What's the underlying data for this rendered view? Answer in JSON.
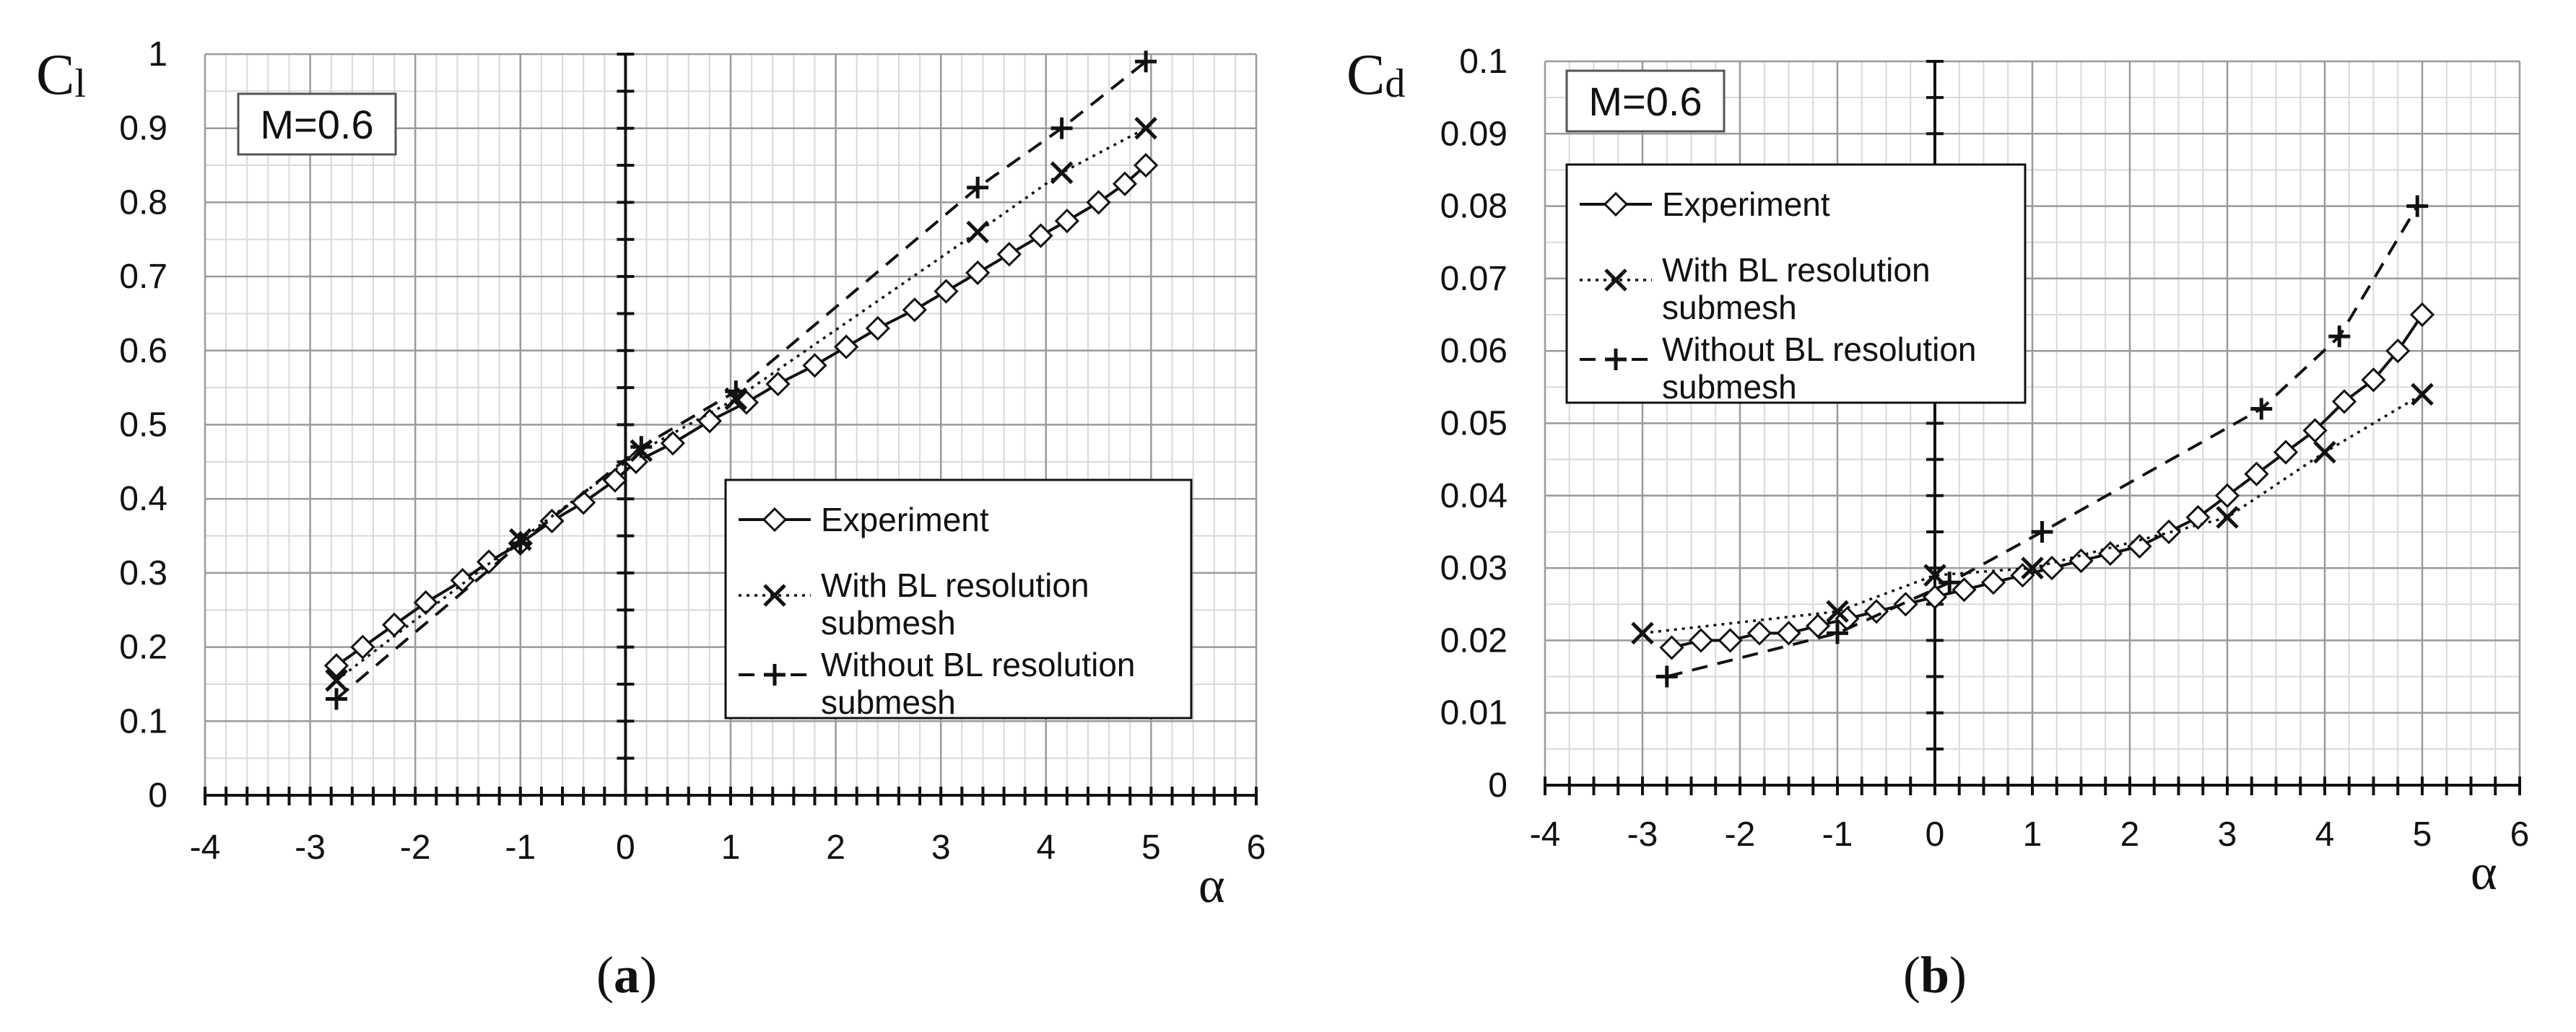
{
  "chart_data": [
    {
      "type": "line",
      "caption": "a",
      "ylabel": "C",
      "ylabel_sub": "l",
      "xlabel": "α",
      "annotation": "M=0.6",
      "xlim": [
        -4,
        6
      ],
      "ylim": [
        0,
        1
      ],
      "xticks": [
        "-4",
        "-3",
        "-2",
        "-1",
        "0",
        "1",
        "2",
        "3",
        "4",
        "5",
        "6"
      ],
      "yticks": [
        "0",
        "0.1",
        "0.2",
        "0.3",
        "0.4",
        "0.5",
        "0.6",
        "0.7",
        "0.8",
        "0.9",
        "1"
      ],
      "legend_position": "bottom-right",
      "series": [
        {
          "name": "Experiment",
          "style": "solid",
          "marker": "diamond",
          "x": [
            -2.75,
            -2.5,
            -2.2,
            -1.9,
            -1.55,
            -1.3,
            -1.0,
            -0.7,
            -0.4,
            -0.1,
            0.1,
            0.45,
            0.8,
            1.15,
            1.45,
            1.8,
            2.1,
            2.4,
            2.75,
            3.05,
            3.35,
            3.65,
            3.95,
            4.2,
            4.5,
            4.75,
            4.95
          ],
          "y": [
            0.175,
            0.2,
            0.23,
            0.26,
            0.29,
            0.315,
            0.34,
            0.37,
            0.395,
            0.425,
            0.45,
            0.475,
            0.505,
            0.53,
            0.555,
            0.58,
            0.605,
            0.63,
            0.655,
            0.68,
            0.705,
            0.73,
            0.755,
            0.775,
            0.8,
            0.825,
            0.85
          ]
        },
        {
          "name": "With BL resolution submesh",
          "style": "dotted",
          "marker": "x",
          "x": [
            -2.75,
            -1.0,
            0.15,
            1.05,
            3.35,
            4.15,
            4.95
          ],
          "y": [
            0.155,
            0.345,
            0.465,
            0.535,
            0.76,
            0.84,
            0.9
          ]
        },
        {
          "name": "Without BL resolution submesh",
          "style": "dashed",
          "marker": "plus",
          "x": [
            -2.75,
            -1.0,
            0.15,
            1.05,
            3.35,
            4.15,
            4.95
          ],
          "y": [
            0.13,
            0.34,
            0.47,
            0.545,
            0.82,
            0.9,
            0.99
          ]
        }
      ]
    },
    {
      "type": "line",
      "caption": "b",
      "ylabel": "C",
      "ylabel_sub": "d",
      "xlabel": "α",
      "annotation": "M=0.6",
      "xlim": [
        -4,
        6
      ],
      "ylim": [
        0,
        0.1
      ],
      "xticks": [
        "-4",
        "-3",
        "-2",
        "-1",
        "0",
        "1",
        "2",
        "3",
        "4",
        "5",
        "6"
      ],
      "yticks": [
        "0",
        "0.01",
        "0.02",
        "0.03",
        "0.04",
        "0.05",
        "0.06",
        "0.07",
        "0.08",
        "0.09",
        "0.1"
      ],
      "legend_position": "top-left",
      "series": [
        {
          "name": "Experiment",
          "style": "solid",
          "marker": "diamond",
          "x": [
            -2.7,
            -2.4,
            -2.1,
            -1.8,
            -1.5,
            -1.2,
            -0.9,
            -0.6,
            -0.3,
            0.0,
            0.3,
            0.6,
            0.9,
            1.2,
            1.5,
            1.8,
            2.1,
            2.4,
            2.7,
            3.0,
            3.3,
            3.6,
            3.9,
            4.2,
            4.5,
            4.75,
            5.0
          ],
          "y": [
            0.019,
            0.02,
            0.02,
            0.021,
            0.021,
            0.022,
            0.023,
            0.024,
            0.025,
            0.026,
            0.027,
            0.028,
            0.029,
            0.03,
            0.031,
            0.032,
            0.033,
            0.035,
            0.037,
            0.04,
            0.043,
            0.046,
            0.049,
            0.053,
            0.056,
            0.06,
            0.065
          ]
        },
        {
          "name": "With BL resolution submesh",
          "style": "dotted",
          "marker": "x",
          "x": [
            -3.0,
            -1.0,
            0.0,
            1.0,
            3.0,
            4.0,
            5.0
          ],
          "y": [
            0.021,
            0.024,
            0.029,
            0.03,
            0.037,
            0.046,
            0.054
          ]
        },
        {
          "name": "Without BL resolution submesh",
          "style": "dashed",
          "marker": "plus",
          "x": [
            -2.75,
            -1.0,
            0.15,
            1.1,
            3.35,
            4.15,
            4.95
          ],
          "y": [
            0.015,
            0.021,
            0.028,
            0.035,
            0.052,
            0.062,
            0.08
          ]
        }
      ]
    }
  ],
  "legend_entries": [
    {
      "lines": [
        "Experiment"
      ]
    },
    {
      "lines": [
        "With BL resolution",
        "submesh"
      ]
    },
    {
      "lines": [
        "Without BL resolution",
        "submesh"
      ]
    }
  ]
}
